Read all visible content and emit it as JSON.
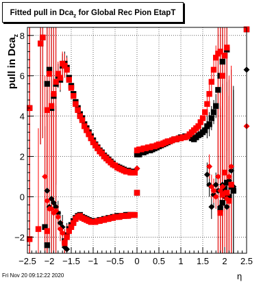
{
  "title": {
    "main": "Fitted pull in Dca",
    "sub": "z",
    "tail": " for Global Rec Pion EtapT"
  },
  "ylabel": {
    "main": "pull in Dca",
    "sub": "z"
  },
  "xlabel": "η",
  "footer": "Fri Nov 20 09:12:22 2020",
  "colors": {
    "series_a": "#000000",
    "series_b": "#ff0000",
    "grid": "#000000"
  },
  "chart_data": {
    "type": "scatter",
    "title": "Fitted pull in Dca_z for Global Rec Pion EtapT",
    "xlabel": "η",
    "ylabel": "pull in Dca_z",
    "xlim": [
      -2.5,
      2.5
    ],
    "ylim": [
      -2.8,
      8.4
    ],
    "xticks": [
      -2.5,
      -2,
      -1.5,
      -1,
      -0.5,
      0,
      0.5,
      1,
      1.5,
      2,
      2.5
    ],
    "xtick_labels": [
      "−2.5",
      "−2",
      "−1.5",
      "−1",
      "−0.5",
      "0",
      "0.5",
      "1",
      "1.5",
      "2",
      "2.5"
    ],
    "yticks": [
      -2,
      0,
      2,
      4,
      6,
      8
    ],
    "ytick_labels": [
      "−2",
      "0",
      "2",
      "4",
      "6",
      "8"
    ],
    "grid": true,
    "series": [
      {
        "marker": "square",
        "color": "#000000",
        "upper": [
          [
            -2.45,
            4.4
          ],
          [
            -2.2,
            7.6
          ],
          [
            -2.15,
            7.9
          ],
          [
            -2.05,
            5.6
          ],
          [
            -2.0,
            6.3
          ],
          [
            -1.95,
            4.4
          ],
          [
            -1.9,
            5.0
          ],
          [
            -1.85,
            5.6
          ],
          [
            -1.8,
            6.0
          ],
          [
            -1.75,
            5.8
          ],
          [
            -1.7,
            6.5
          ],
          [
            -1.65,
            6.6
          ],
          [
            -1.6,
            6.4
          ],
          [
            -1.55,
            5.9
          ],
          [
            -1.5,
            5.5
          ],
          [
            -1.45,
            5.1
          ],
          [
            -1.4,
            4.7
          ],
          [
            -1.35,
            4.4
          ],
          [
            -1.3,
            4.1
          ],
          [
            -1.25,
            3.9
          ],
          [
            -1.2,
            3.6
          ],
          [
            -1.15,
            3.4
          ],
          [
            -1.1,
            3.2
          ],
          [
            -1.05,
            3.0
          ],
          [
            -1.0,
            2.8
          ],
          [
            -0.95,
            2.6
          ],
          [
            -0.9,
            2.45
          ],
          [
            -0.85,
            2.3
          ],
          [
            -0.8,
            2.2
          ],
          [
            -0.75,
            2.05
          ],
          [
            -0.7,
            1.95
          ],
          [
            -0.65,
            1.85
          ],
          [
            -0.6,
            1.75
          ],
          [
            -0.55,
            1.65
          ],
          [
            -0.5,
            1.55
          ],
          [
            -0.45,
            1.5
          ],
          [
            -0.4,
            1.45
          ],
          [
            -0.35,
            1.4
          ],
          [
            -0.3,
            1.35
          ],
          [
            -0.25,
            1.3
          ],
          [
            -0.2,
            1.3
          ],
          [
            -0.15,
            1.25
          ],
          [
            -0.1,
            1.25
          ],
          [
            -0.05,
            1.25
          ],
          [
            0.0,
            2.1
          ],
          [
            0.05,
            2.1
          ],
          [
            0.1,
            2.2
          ],
          [
            0.15,
            2.2
          ],
          [
            0.2,
            2.25
          ],
          [
            0.25,
            2.3
          ],
          [
            0.3,
            2.3
          ],
          [
            0.35,
            2.35
          ],
          [
            0.4,
            2.4
          ],
          [
            0.45,
            2.45
          ],
          [
            0.5,
            2.5
          ],
          [
            0.55,
            2.55
          ],
          [
            0.6,
            2.6
          ],
          [
            0.65,
            2.65
          ],
          [
            0.7,
            2.7
          ],
          [
            0.75,
            2.75
          ],
          [
            0.8,
            2.8
          ],
          [
            0.85,
            2.85
          ],
          [
            0.9,
            2.85
          ],
          [
            0.95,
            2.9
          ],
          [
            1.0,
            2.95
          ],
          [
            1.05,
            2.95
          ],
          [
            1.1,
            3.0
          ],
          [
            1.15,
            3.0
          ],
          [
            1.2,
            3.0
          ],
          [
            1.25,
            2.9
          ],
          [
            1.3,
            2.85
          ],
          [
            1.35,
            2.95
          ],
          [
            1.4,
            3.05
          ],
          [
            1.45,
            3.1
          ],
          [
            1.5,
            3.2
          ],
          [
            1.55,
            3.3
          ],
          [
            1.6,
            3.5
          ],
          [
            1.65,
            3.6
          ],
          [
            1.7,
            3.9
          ],
          [
            1.75,
            4.2
          ],
          [
            1.8,
            4.5
          ],
          [
            1.85,
            5.3
          ],
          [
            1.9,
            6.0
          ],
          [
            1.95,
            6.7
          ],
          [
            2.0,
            7.0
          ],
          [
            2.05,
            7.3
          ],
          [
            2.5,
            8.3
          ]
        ],
        "lower": [
          [
            -2.1,
            -1.5
          ],
          [
            -2.05,
            -2.4
          ],
          [
            -1.65,
            -2.2
          ],
          [
            -1.6,
            -1.9
          ],
          [
            -1.55,
            -1.6
          ],
          [
            -1.5,
            -1.4
          ],
          [
            -1.45,
            -1.2
          ],
          [
            -1.4,
            -1.05
          ],
          [
            -1.35,
            -0.95
          ],
          [
            -1.3,
            -0.9
          ],
          [
            -1.25,
            -1.0
          ],
          [
            -1.2,
            -1.05
          ],
          [
            -1.15,
            -1.1
          ],
          [
            -1.1,
            -1.15
          ],
          [
            -1.05,
            -1.2
          ],
          [
            -1.0,
            -1.2
          ],
          [
            -0.95,
            -1.2
          ],
          [
            -0.9,
            -1.2
          ],
          [
            -0.85,
            -1.15
          ],
          [
            -0.8,
            -1.15
          ],
          [
            -0.75,
            -1.1
          ],
          [
            -0.7,
            -1.1
          ],
          [
            -0.65,
            -1.05
          ],
          [
            -0.6,
            -1.05
          ],
          [
            -0.55,
            -1.0
          ],
          [
            -0.5,
            -1.0
          ],
          [
            -0.45,
            -0.95
          ],
          [
            -0.4,
            -0.95
          ],
          [
            -0.35,
            -0.95
          ],
          [
            -0.3,
            -0.95
          ],
          [
            -0.25,
            -0.9
          ],
          [
            -0.2,
            -0.9
          ],
          [
            -0.15,
            -0.9
          ],
          [
            -0.1,
            -0.9
          ],
          [
            -0.05,
            -0.9
          ],
          [
            0.0,
            0.2
          ],
          [
            1.9,
            -0.6
          ],
          [
            1.95,
            -0.3
          ],
          [
            2.0,
            0.4
          ],
          [
            2.05,
            0.7
          ],
          [
            2.1,
            0.0
          ],
          [
            2.15,
            0.5
          ],
          [
            2.2,
            0.3
          ]
        ],
        "diamonds": [
          [
            -2.05,
            0.3
          ],
          [
            -2.0,
            -0.5
          ],
          [
            -1.95,
            -0.1
          ],
          [
            -1.9,
            -0.3
          ],
          [
            -1.85,
            -0.5
          ],
          [
            -1.8,
            -0.8
          ],
          [
            -1.75,
            -1.3
          ],
          [
            -1.7,
            -1.5
          ],
          [
            -1.65,
            -2.5
          ],
          [
            -1.6,
            -2.6
          ],
          [
            0.0,
            1.4
          ],
          [
            1.6,
            1.1
          ],
          [
            1.65,
            0.6
          ],
          [
            1.7,
            -0.5
          ],
          [
            1.75,
            0.1
          ],
          [
            1.8,
            0.6
          ],
          [
            1.85,
            0.3
          ],
          [
            1.9,
            -0.5
          ],
          [
            1.95,
            0.6
          ],
          [
            2.0,
            0.0
          ],
          [
            2.05,
            -0.5
          ],
          [
            2.1,
            0.8
          ],
          [
            2.15,
            1.3
          ],
          [
            2.2,
            0.5
          ],
          [
            2.5,
            6.3
          ]
        ]
      },
      {
        "marker": "square",
        "color": "#ff0000",
        "upper": [
          [
            -2.45,
            4.4
          ],
          [
            -2.2,
            7.6
          ],
          [
            -2.15,
            7.9
          ],
          [
            -2.05,
            4.3
          ],
          [
            -2.0,
            6.1
          ],
          [
            -1.95,
            4.5
          ],
          [
            -1.9,
            5.1
          ],
          [
            -1.85,
            5.7
          ],
          [
            -1.8,
            6.1
          ],
          [
            -1.75,
            5.9
          ],
          [
            -1.7,
            6.6
          ],
          [
            -1.65,
            6.5
          ],
          [
            -1.6,
            6.3
          ],
          [
            -1.55,
            5.8
          ],
          [
            -1.5,
            5.4
          ],
          [
            -1.45,
            5.0
          ],
          [
            -1.4,
            4.6
          ],
          [
            -1.35,
            4.3
          ],
          [
            -1.3,
            4.0
          ],
          [
            -1.25,
            3.8
          ],
          [
            -1.2,
            3.5
          ],
          [
            -1.15,
            3.3
          ],
          [
            -1.1,
            3.1
          ],
          [
            -1.05,
            2.9
          ],
          [
            -1.0,
            2.7
          ],
          [
            -0.95,
            2.55
          ],
          [
            -0.9,
            2.4
          ],
          [
            -0.85,
            2.25
          ],
          [
            -0.8,
            2.15
          ],
          [
            -0.75,
            2.0
          ],
          [
            -0.7,
            1.9
          ],
          [
            -0.65,
            1.8
          ],
          [
            -0.6,
            1.7
          ],
          [
            -0.55,
            1.6
          ],
          [
            -0.5,
            1.55
          ],
          [
            -0.45,
            1.45
          ],
          [
            -0.4,
            1.4
          ],
          [
            -0.35,
            1.35
          ],
          [
            -0.3,
            1.3
          ],
          [
            -0.25,
            1.25
          ],
          [
            -0.2,
            1.25
          ],
          [
            -0.15,
            1.2
          ],
          [
            -0.1,
            1.2
          ],
          [
            -0.05,
            1.2
          ],
          [
            0.0,
            2.3
          ],
          [
            0.05,
            2.35
          ],
          [
            0.1,
            2.35
          ],
          [
            0.15,
            2.4
          ],
          [
            0.2,
            2.4
          ],
          [
            0.25,
            2.45
          ],
          [
            0.3,
            2.45
          ],
          [
            0.35,
            2.5
          ],
          [
            0.4,
            2.5
          ],
          [
            0.45,
            2.55
          ],
          [
            0.5,
            2.6
          ],
          [
            0.55,
            2.6
          ],
          [
            0.6,
            2.65
          ],
          [
            0.65,
            2.7
          ],
          [
            0.7,
            2.75
          ],
          [
            0.75,
            2.75
          ],
          [
            0.8,
            2.8
          ],
          [
            0.85,
            2.85
          ],
          [
            0.9,
            2.85
          ],
          [
            0.95,
            2.9
          ],
          [
            1.0,
            2.9
          ],
          [
            1.05,
            2.95
          ],
          [
            1.1,
            2.95
          ],
          [
            1.15,
            3.0
          ],
          [
            1.2,
            3.1
          ],
          [
            1.25,
            3.2
          ],
          [
            1.3,
            3.3
          ],
          [
            1.35,
            3.4
          ],
          [
            1.4,
            3.5
          ],
          [
            1.45,
            3.7
          ],
          [
            1.5,
            3.9
          ],
          [
            1.55,
            4.2
          ],
          [
            1.6,
            4.6
          ],
          [
            1.65,
            5.1
          ],
          [
            1.7,
            5.7
          ],
          [
            1.75,
            6.3
          ],
          [
            1.8,
            6.9
          ],
          [
            1.85,
            7.1
          ],
          [
            1.9,
            7.2
          ],
          [
            1.95,
            6.0
          ],
          [
            2.0,
            7.0
          ],
          [
            2.05,
            7.4
          ],
          [
            2.5,
            8.3
          ]
        ],
        "lower": [
          [
            -2.45,
            -2.1
          ],
          [
            -2.25,
            -1.6
          ],
          [
            -2.05,
            -1.7
          ],
          [
            -1.65,
            -2.3
          ],
          [
            -1.6,
            -2.0
          ],
          [
            -1.55,
            -1.7
          ],
          [
            -1.5,
            -1.5
          ],
          [
            -1.45,
            -1.3
          ],
          [
            -1.4,
            -1.1
          ],
          [
            -1.35,
            -1.0
          ],
          [
            -1.3,
            -0.95
          ],
          [
            -1.25,
            -1.05
          ],
          [
            -1.2,
            -1.1
          ],
          [
            -1.15,
            -1.15
          ],
          [
            -1.1,
            -1.2
          ],
          [
            -1.05,
            -1.25
          ],
          [
            -1.0,
            -1.25
          ],
          [
            -0.95,
            -1.25
          ],
          [
            -0.9,
            -1.2
          ],
          [
            -0.85,
            -1.2
          ],
          [
            -0.8,
            -1.15
          ],
          [
            -0.75,
            -1.15
          ],
          [
            -0.7,
            -1.1
          ],
          [
            -0.65,
            -1.1
          ],
          [
            -0.6,
            -1.05
          ],
          [
            -0.55,
            -1.05
          ],
          [
            -0.5,
            -1.0
          ],
          [
            -0.45,
            -1.0
          ],
          [
            -0.4,
            -1.0
          ],
          [
            -0.35,
            -0.95
          ],
          [
            -0.3,
            -0.95
          ],
          [
            -0.25,
            -0.95
          ],
          [
            -0.2,
            -0.95
          ],
          [
            -0.15,
            -0.9
          ],
          [
            -0.1,
            -0.9
          ],
          [
            -0.05,
            -0.9
          ],
          [
            0.0,
            0.2
          ],
          [
            1.9,
            -0.8
          ],
          [
            1.95,
            0.1
          ],
          [
            2.0,
            1.2
          ],
          [
            2.05,
            0.2
          ],
          [
            2.1,
            -0.2
          ],
          [
            2.15,
            0.6
          ]
        ],
        "diamonds": [
          [
            -2.1,
            1.0
          ],
          [
            -2.05,
            -0.2
          ],
          [
            -2.0,
            -0.6
          ],
          [
            -1.95,
            -0.6
          ],
          [
            -1.9,
            -0.8
          ],
          [
            -1.85,
            -0.7
          ],
          [
            -1.8,
            -1.0
          ],
          [
            -1.75,
            -1.6
          ],
          [
            -1.7,
            -1.8
          ],
          [
            -1.65,
            -2.2
          ],
          [
            0.0,
            1.4
          ],
          [
            1.65,
            1.5
          ],
          [
            1.7,
            0.5
          ],
          [
            1.75,
            0.3
          ],
          [
            1.8,
            0.0
          ],
          [
            1.85,
            1.0
          ],
          [
            1.9,
            0.3
          ],
          [
            1.95,
            0.5
          ],
          [
            2.0,
            0.2
          ],
          [
            2.05,
            -0.1
          ],
          [
            2.1,
            1.0
          ],
          [
            2.15,
            1.5
          ],
          [
            2.5,
            3.5
          ]
        ]
      }
    ]
  }
}
